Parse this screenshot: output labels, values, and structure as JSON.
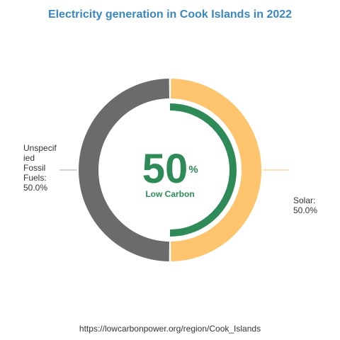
{
  "chart_data": {
    "type": "pie",
    "title": "Electricity generation in Cook Islands in 2022",
    "slices": [
      {
        "name": "Solar",
        "value": 50.0,
        "label_lines": [
          "Solar:",
          "50.0%"
        ],
        "color": "#ffc46e"
      },
      {
        "name": "Unspecified Fossil Fuels",
        "value": 50.0,
        "label_lines": [
          "Unspecif",
          "ied",
          "Fossil",
          "Fuels:",
          "50.0%"
        ],
        "color": "#6b6b6b"
      }
    ],
    "center": {
      "value": "50",
      "unit": "%",
      "caption": "Low Carbon",
      "low_carbon_share": 50.0
    },
    "source": "https://lowcarbonpower.org/region/Cook_Islands"
  },
  "colors": {
    "title": "#3a87c0",
    "low_carbon": "#2e8b57",
    "leader": "#bbbbbb"
  }
}
